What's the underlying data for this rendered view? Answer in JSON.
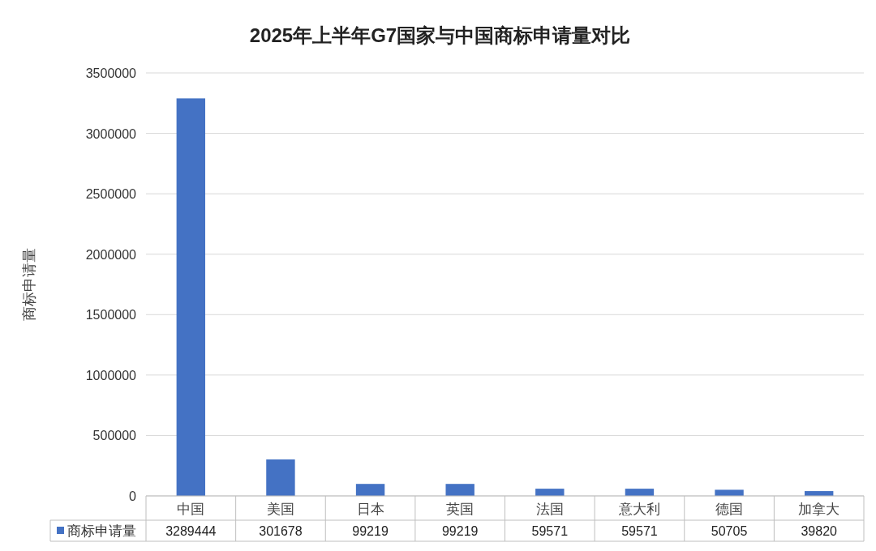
{
  "chart_data": {
    "type": "bar",
    "title": "2025年上半年G7国家与中国商标申请量对比",
    "ylabel": "商标申请量",
    "categories": [
      "中国",
      "美国",
      "日本",
      "英国",
      "法国",
      "意大利",
      "德国",
      "加拿大"
    ],
    "series": [
      {
        "name": "商标申请量",
        "color": "#4472c4",
        "values": [
          3289444,
          301678,
          99219,
          99219,
          59571,
          59571,
          50705,
          39820
        ]
      }
    ],
    "ylim": [
      0,
      3500000
    ],
    "yticks": [
      0,
      500000,
      1000000,
      1500000,
      2000000,
      2500000,
      3000000,
      3500000
    ],
    "grid": "y",
    "legend": "bottom",
    "data_labels": true
  }
}
